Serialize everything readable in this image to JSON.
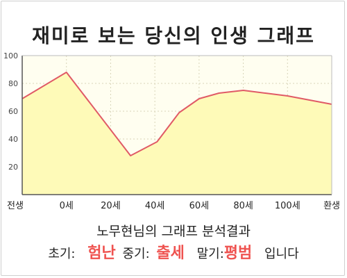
{
  "chart_data": {
    "type": "area",
    "title": "재미로 보는 당신의 인생 그래프",
    "categories": [
      "전생",
      "0세",
      "20세",
      "40세",
      "60세",
      "80세",
      "100세",
      "환생"
    ],
    "x": [
      0,
      1,
      2,
      3,
      4,
      5,
      6,
      7
    ],
    "points": [
      {
        "x": 0.0,
        "y": 69
      },
      {
        "x": 1.0,
        "y": 88
      },
      {
        "x": 2.45,
        "y": 28
      },
      {
        "x": 3.05,
        "y": 38
      },
      {
        "x": 3.55,
        "y": 59
      },
      {
        "x": 4.0,
        "y": 69
      },
      {
        "x": 4.45,
        "y": 73
      },
      {
        "x": 5.0,
        "y": 75
      },
      {
        "x": 5.5,
        "y": 73
      },
      {
        "x": 6.0,
        "y": 71
      },
      {
        "x": 7.0,
        "y": 65
      }
    ],
    "ylim": [
      0,
      100
    ],
    "yticks": [
      20,
      40,
      60,
      80,
      100
    ],
    "grid": true,
    "colors": {
      "line": "#e05a66",
      "fill": "#fefab8",
      "plot_bg": "#fffef0",
      "grid": "#d8d4b8"
    }
  },
  "summary": {
    "title": "노무현님의 그래프 분석결과",
    "early_label": "초기:",
    "early_value": "험난",
    "middle_label": "중기:",
    "middle_value": "출세",
    "late_label": "말기:",
    "late_value": "평범",
    "ending": "입니다"
  }
}
